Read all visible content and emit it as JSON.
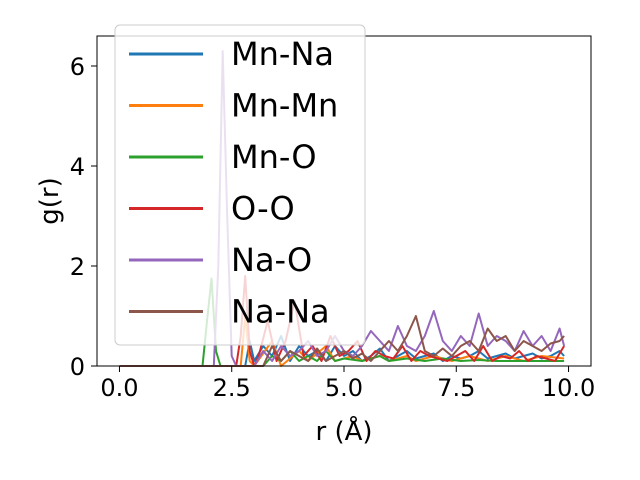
{
  "chart_data": {
    "type": "line",
    "title": "",
    "xlabel": "r (Å)",
    "ylabel": "g(r)",
    "xlim": [
      -0.5,
      10.5
    ],
    "ylim": [
      0,
      6.6
    ],
    "xticks": [
      0.0,
      2.5,
      5.0,
      7.5,
      10.0
    ],
    "xtick_labels": [
      "0.0",
      "2.5",
      "5.0",
      "7.5",
      "10.0"
    ],
    "yticks": [
      0,
      2,
      4,
      6
    ],
    "ytick_labels": [
      "0",
      "2",
      "4",
      "6"
    ],
    "grid": false,
    "legend": "upper-left",
    "series": [
      {
        "name": "Mn-Na",
        "color": "#1f77b4",
        "points": [
          [
            0,
            0
          ],
          [
            2.8,
            0
          ],
          [
            2.9,
            0.5
          ],
          [
            3.0,
            0.1
          ],
          [
            3.2,
            0.4
          ],
          [
            3.4,
            0.2
          ],
          [
            3.6,
            0.6
          ],
          [
            3.8,
            0.1
          ],
          [
            4.0,
            0.4
          ],
          [
            4.2,
            0.2
          ],
          [
            4.4,
            0.3
          ],
          [
            4.6,
            0.1
          ],
          [
            4.8,
            0.4
          ],
          [
            5.0,
            0.2
          ],
          [
            5.2,
            0.3
          ],
          [
            5.4,
            0.1
          ],
          [
            5.6,
            0.2
          ],
          [
            5.8,
            0.35
          ],
          [
            6.0,
            0.1
          ],
          [
            6.2,
            0.2
          ],
          [
            6.4,
            0.3
          ],
          [
            6.6,
            0.15
          ],
          [
            6.8,
            0.2
          ],
          [
            7.0,
            0.25
          ],
          [
            7.2,
            0.1
          ],
          [
            7.4,
            0.2
          ],
          [
            7.6,
            0.15
          ],
          [
            7.8,
            0.2
          ],
          [
            8.0,
            0.3
          ],
          [
            8.2,
            0.15
          ],
          [
            8.4,
            0.2
          ],
          [
            8.6,
            0.25
          ],
          [
            8.8,
            0.15
          ],
          [
            9.0,
            0.2
          ],
          [
            9.2,
            0.25
          ],
          [
            9.4,
            0.15
          ],
          [
            9.6,
            0.2
          ],
          [
            9.8,
            0.3
          ],
          [
            9.9,
            0.2
          ]
        ]
      },
      {
        "name": "Mn-Mn",
        "color": "#ff7f0e",
        "points": [
          [
            0,
            0
          ],
          [
            2.7,
            0
          ],
          [
            2.8,
            1.0
          ],
          [
            2.9,
            0.1
          ],
          [
            3.0,
            0
          ],
          [
            3.4,
            0.5
          ],
          [
            3.6,
            0
          ],
          [
            4.0,
            0.3
          ],
          [
            4.2,
            0.1
          ],
          [
            4.6,
            0.4
          ],
          [
            4.8,
            0.1
          ],
          [
            5.2,
            0.2
          ],
          [
            5.4,
            0.1
          ],
          [
            5.8,
            0.2
          ],
          [
            6.0,
            0.1
          ],
          [
            6.4,
            0.2
          ],
          [
            6.6,
            0.1
          ],
          [
            7.0,
            0.2
          ],
          [
            7.4,
            0.1
          ],
          [
            7.8,
            0.2
          ],
          [
            8.2,
            0.1
          ],
          [
            8.6,
            0.2
          ],
          [
            9.0,
            0.1
          ],
          [
            9.4,
            0.2
          ],
          [
            9.9,
            0.15
          ]
        ]
      },
      {
        "name": "Mn-O",
        "color": "#2ca02c",
        "points": [
          [
            0,
            0
          ],
          [
            1.85,
            0
          ],
          [
            1.95,
            0.9
          ],
          [
            2.05,
            1.75
          ],
          [
            2.15,
            0.3
          ],
          [
            2.25,
            0
          ],
          [
            3.2,
            0
          ],
          [
            3.4,
            0.2
          ],
          [
            3.6,
            0.1
          ],
          [
            3.8,
            0.3
          ],
          [
            4.0,
            0.1
          ],
          [
            4.2,
            0.2
          ],
          [
            4.4,
            0.1
          ],
          [
            4.6,
            0.3
          ],
          [
            4.8,
            0.1
          ],
          [
            5.0,
            0.15
          ],
          [
            5.4,
            0.1
          ],
          [
            5.8,
            0.2
          ],
          [
            6.0,
            0.1
          ],
          [
            6.4,
            0.15
          ],
          [
            6.8,
            0.1
          ],
          [
            7.2,
            0.15
          ],
          [
            7.6,
            0.1
          ],
          [
            8.0,
            0.12
          ],
          [
            8.4,
            0.1
          ],
          [
            8.8,
            0.1
          ],
          [
            9.2,
            0.1
          ],
          [
            9.6,
            0.1
          ],
          [
            9.9,
            0.1
          ]
        ]
      },
      {
        "name": "O-O",
        "color": "#d62728",
        "points": [
          [
            0,
            0
          ],
          [
            2.6,
            0
          ],
          [
            2.7,
            0.6
          ],
          [
            2.8,
            1.8
          ],
          [
            2.9,
            0.3
          ],
          [
            3.0,
            0
          ],
          [
            3.1,
            0.2
          ],
          [
            3.3,
            0.9
          ],
          [
            3.5,
            0.1
          ],
          [
            3.7,
            0.5
          ],
          [
            3.9,
            1.3
          ],
          [
            4.1,
            0.2
          ],
          [
            4.3,
            0.4
          ],
          [
            4.5,
            0.1
          ],
          [
            4.7,
            0.6
          ],
          [
            4.9,
            0.2
          ],
          [
            5.1,
            0.3
          ],
          [
            5.3,
            0.5
          ],
          [
            5.5,
            0.1
          ],
          [
            5.7,
            0.3
          ],
          [
            5.9,
            0.2
          ],
          [
            6.1,
            0.15
          ],
          [
            6.3,
            0.4
          ],
          [
            6.5,
            0.1
          ],
          [
            6.7,
            0.3
          ],
          [
            6.9,
            0.2
          ],
          [
            7.1,
            0.15
          ],
          [
            7.3,
            0.1
          ],
          [
            7.5,
            0.2
          ],
          [
            7.7,
            0.3
          ],
          [
            7.9,
            0.1
          ],
          [
            8.1,
            0.4
          ],
          [
            8.3,
            0.1
          ],
          [
            8.5,
            0.2
          ],
          [
            8.7,
            0.15
          ],
          [
            8.9,
            0.3
          ],
          [
            9.1,
            0.1
          ],
          [
            9.3,
            0.2
          ],
          [
            9.5,
            0.15
          ],
          [
            9.7,
            0.1
          ],
          [
            9.9,
            0.4
          ]
        ]
      },
      {
        "name": "Na-O",
        "color": "#9467bd",
        "points": [
          [
            0,
            0
          ],
          [
            2.1,
            0
          ],
          [
            2.2,
            2.0
          ],
          [
            2.3,
            6.3
          ],
          [
            2.4,
            3.0
          ],
          [
            2.5,
            0.2
          ],
          [
            2.6,
            0
          ],
          [
            3.0,
            0
          ],
          [
            3.2,
            0.3
          ],
          [
            3.4,
            0.1
          ],
          [
            3.6,
            0.4
          ],
          [
            3.8,
            0.2
          ],
          [
            4.0,
            0.3
          ],
          [
            4.2,
            0.5
          ],
          [
            4.4,
            0.2
          ],
          [
            4.6,
            0.3
          ],
          [
            4.8,
            0.6
          ],
          [
            5.0,
            0.3
          ],
          [
            5.2,
            0.2
          ],
          [
            5.4,
            0.4
          ],
          [
            5.6,
            0.7
          ],
          [
            5.8,
            0.5
          ],
          [
            6.0,
            0.3
          ],
          [
            6.2,
            0.8
          ],
          [
            6.4,
            0.4
          ],
          [
            6.6,
            0.3
          ],
          [
            6.8,
            0.6
          ],
          [
            7.0,
            1.1
          ],
          [
            7.2,
            0.5
          ],
          [
            7.4,
            0.3
          ],
          [
            7.6,
            0.6
          ],
          [
            7.8,
            0.4
          ],
          [
            8.0,
            1.05
          ],
          [
            8.2,
            0.4
          ],
          [
            8.4,
            0.6
          ],
          [
            8.6,
            0.5
          ],
          [
            8.8,
            0.3
          ],
          [
            9.0,
            0.7
          ],
          [
            9.2,
            0.4
          ],
          [
            9.4,
            0.6
          ],
          [
            9.6,
            0.3
          ],
          [
            9.8,
            0.75
          ],
          [
            9.9,
            0.4
          ]
        ]
      },
      {
        "name": "Na-Na",
        "color": "#8c564b",
        "points": [
          [
            0,
            0
          ],
          [
            3.2,
            0
          ],
          [
            3.4,
            0.4
          ],
          [
            3.6,
            0.1
          ],
          [
            3.8,
            0.3
          ],
          [
            4.0,
            0.2
          ],
          [
            4.2,
            0.1
          ],
          [
            4.4,
            0.35
          ],
          [
            4.6,
            0.1
          ],
          [
            4.8,
            0.2
          ],
          [
            5.0,
            0.3
          ],
          [
            5.2,
            0.15
          ],
          [
            5.4,
            0.25
          ],
          [
            5.6,
            0.1
          ],
          [
            5.8,
            0.3
          ],
          [
            6.0,
            0.5
          ],
          [
            6.2,
            0.3
          ],
          [
            6.4,
            0.6
          ],
          [
            6.6,
            1.0
          ],
          [
            6.8,
            0.3
          ],
          [
            7.0,
            0.2
          ],
          [
            7.2,
            0.35
          ],
          [
            7.4,
            0.2
          ],
          [
            7.6,
            0.4
          ],
          [
            7.8,
            0.5
          ],
          [
            8.0,
            0.3
          ],
          [
            8.2,
            0.75
          ],
          [
            8.4,
            0.5
          ],
          [
            8.6,
            0.6
          ],
          [
            8.8,
            0.3
          ],
          [
            9.0,
            0.5
          ],
          [
            9.2,
            0.4
          ],
          [
            9.4,
            0.3
          ],
          [
            9.6,
            0.45
          ],
          [
            9.8,
            0.5
          ],
          [
            9.9,
            0.6
          ]
        ]
      }
    ]
  }
}
